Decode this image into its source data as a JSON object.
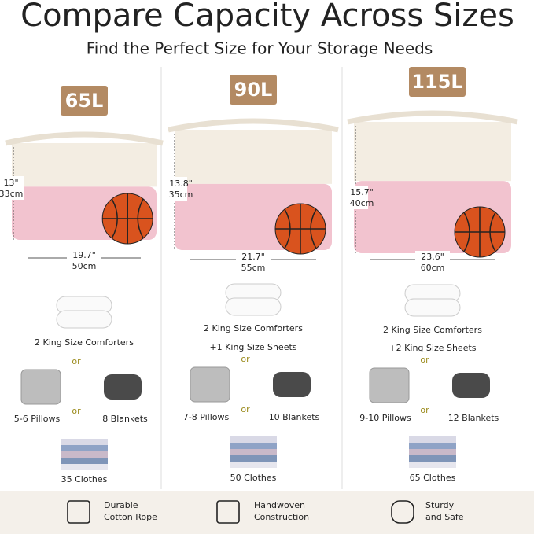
{
  "title": "Compare Capacity Across Sizes",
  "subtitle": "Find the Perfect Size for Your Storage Needs",
  "sizes": [
    {
      "capacity": "65L",
      "height": [
        "13\"",
        "33cm"
      ],
      "width": [
        "19.7\"",
        "50cm"
      ],
      "comforters": "2 King Size Comforters",
      "separators": [
        "or",
        "or"
      ],
      "pillows": "5-6 Pillows",
      "blankets": "8 Blankets",
      "clothes": "35 Clothes"
    },
    {
      "capacity": "90L",
      "height": [
        "13.8\"",
        "35cm"
      ],
      "width": [
        "21.7\"",
        "55cm"
      ],
      "comforters": "2 King Size Comforters",
      "sheets": "+1 King Size Sheets",
      "separators": [
        "or",
        "or"
      ],
      "pillows": "7-8 Pillows",
      "blankets": "10 Blankets",
      "clothes": "50 Clothes"
    },
    {
      "capacity": "115L",
      "height": [
        "15.7\"",
        "40cm"
      ],
      "width": [
        "23.6\"",
        "60cm"
      ],
      "comforters": "2 King Size Comforters",
      "sheets": "+2 King Size Sheets",
      "separators": [
        "or",
        "or"
      ],
      "pillows": "9-10 Pillows",
      "blankets": "12 Blankets",
      "clothes": "65 Clothes"
    }
  ],
  "features": [
    [
      "Durable",
      "Cotton Rope"
    ],
    [
      "Handwoven",
      "Construction"
    ],
    [
      "Sturdy",
      "and Safe"
    ]
  ]
}
